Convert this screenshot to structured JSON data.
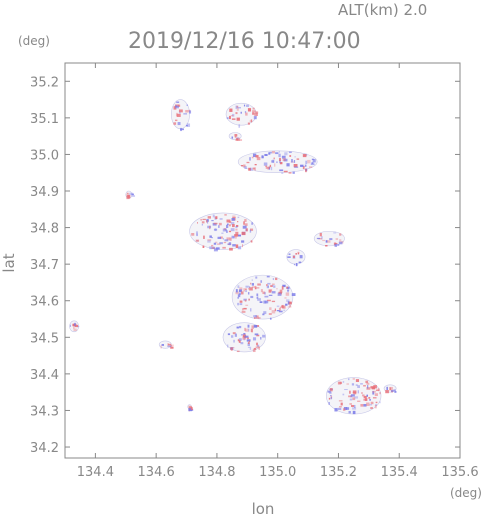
{
  "header": {
    "altitude_label": "ALT(km) 2.0",
    "timestamp": "2019/12/16 10:47:00",
    "unit_top_left": "(deg)",
    "unit_bottom_right": "(deg)"
  },
  "chart_data": {
    "type": "scatter",
    "title": "2019/12/16 10:47:00",
    "xlabel": "lon",
    "ylabel": "lat",
    "xlim": [
      134.3,
      135.6
    ],
    "ylim": [
      34.17,
      35.25
    ],
    "xticks": [
      "134.4",
      "134.6",
      "134.8",
      "135.0",
      "135.2",
      "135.4",
      "135.6"
    ],
    "xtick_values": [
      134.4,
      134.6,
      134.8,
      135.0,
      135.2,
      135.4,
      135.6
    ],
    "yticks": [
      "34.2",
      "34.3",
      "34.4",
      "34.5",
      "34.6",
      "34.7",
      "34.8",
      "34.9",
      "35.0",
      "35.1",
      "35.2"
    ],
    "ytick_values": [
      34.2,
      34.3,
      34.4,
      34.5,
      34.6,
      34.7,
      34.8,
      34.9,
      35.0,
      35.1,
      35.2
    ],
    "grid": false,
    "colors": {
      "positive": "#e8707a",
      "negative": "#7a7ae8",
      "axis": "#888888"
    },
    "echo_clusters": [
      {
        "lon": 134.82,
        "lat": 34.79,
        "r_lon": 0.11,
        "r_lat": 0.05
      },
      {
        "lon": 134.95,
        "lat": 34.61,
        "r_lon": 0.1,
        "r_lat": 0.06
      },
      {
        "lon": 134.89,
        "lat": 34.5,
        "r_lon": 0.07,
        "r_lat": 0.04
      },
      {
        "lon": 135.25,
        "lat": 34.34,
        "r_lon": 0.09,
        "r_lat": 0.05
      },
      {
        "lon": 135.0,
        "lat": 34.98,
        "r_lon": 0.13,
        "r_lat": 0.03
      },
      {
        "lon": 134.88,
        "lat": 35.11,
        "r_lon": 0.05,
        "r_lat": 0.03
      },
      {
        "lon": 134.68,
        "lat": 35.11,
        "r_lon": 0.03,
        "r_lat": 0.04
      },
      {
        "lon": 135.17,
        "lat": 34.77,
        "r_lon": 0.05,
        "r_lat": 0.02
      },
      {
        "lon": 134.33,
        "lat": 34.53,
        "r_lon": 0.015,
        "r_lat": 0.015
      },
      {
        "lon": 134.51,
        "lat": 34.89,
        "r_lon": 0.01,
        "r_lat": 0.01
      },
      {
        "lon": 134.63,
        "lat": 34.48,
        "r_lon": 0.02,
        "r_lat": 0.01
      },
      {
        "lon": 135.06,
        "lat": 34.72,
        "r_lon": 0.03,
        "r_lat": 0.02
      },
      {
        "lon": 134.86,
        "lat": 35.05,
        "r_lon": 0.02,
        "r_lat": 0.01
      },
      {
        "lon": 134.71,
        "lat": 34.31,
        "r_lon": 0.006,
        "r_lat": 0.006
      },
      {
        "lon": 135.37,
        "lat": 34.36,
        "r_lon": 0.02,
        "r_lat": 0.01
      }
    ]
  }
}
